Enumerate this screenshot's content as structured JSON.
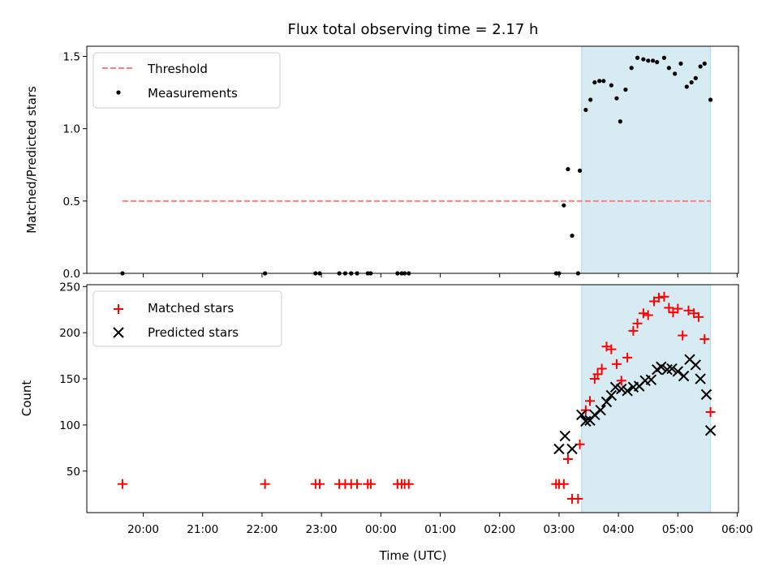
{
  "title": "Flux total observing time = 2.17 h",
  "chart_data": [
    {
      "type": "scatter",
      "ylabel": "Matched/Predicted stars",
      "xlabel": "",
      "x_unit": "hours (UTC, continuing past midnight)",
      "ylim": [
        0,
        1.57
      ],
      "y_ticks": [
        "0.0",
        "0.5",
        "1.0",
        "1.5"
      ],
      "y_tick_values": [
        0,
        0.5,
        1.0,
        1.5
      ],
      "shaded_span": [
        3.38,
        5.55
      ],
      "legend_position": "upper-left",
      "threshold": {
        "name": "Threshold",
        "color": "#ff7f7f",
        "y": 0.5,
        "x_range": [
          19.65,
          29.55
        ]
      },
      "series": [
        {
          "name": "Measurements",
          "color": "#000000",
          "marker": "dot",
          "points": [
            [
              19.65,
              0
            ],
            [
              22.05,
              0
            ],
            [
              22.9,
              0
            ],
            [
              22.97,
              0
            ],
            [
              23.3,
              0
            ],
            [
              23.4,
              0
            ],
            [
              23.5,
              0
            ],
            [
              23.6,
              0
            ],
            [
              23.78,
              0
            ],
            [
              23.83,
              0
            ],
            [
              24.28,
              0
            ],
            [
              24.35,
              0
            ],
            [
              24.4,
              0
            ],
            [
              24.47,
              0
            ],
            [
              26.95,
              0
            ],
            [
              27.0,
              0
            ],
            [
              27.32,
              0
            ],
            [
              27.08,
              0.47
            ],
            [
              27.15,
              0.72
            ],
            [
              27.22,
              0.26
            ],
            [
              27.35,
              0.71
            ],
            [
              27.45,
              1.13
            ],
            [
              27.53,
              1.2
            ],
            [
              27.6,
              1.32
            ],
            [
              27.68,
              1.33
            ],
            [
              27.75,
              1.33
            ],
            [
              27.88,
              1.3
            ],
            [
              27.97,
              1.21
            ],
            [
              28.03,
              1.05
            ],
            [
              28.12,
              1.27
            ],
            [
              28.22,
              1.42
            ],
            [
              28.32,
              1.49
            ],
            [
              28.42,
              1.48
            ],
            [
              28.5,
              1.47
            ],
            [
              28.58,
              1.47
            ],
            [
              28.65,
              1.46
            ],
            [
              28.77,
              1.49
            ],
            [
              28.85,
              1.42
            ],
            [
              28.95,
              1.38
            ],
            [
              29.05,
              1.45
            ],
            [
              29.15,
              1.29
            ],
            [
              29.23,
              1.32
            ],
            [
              29.3,
              1.35
            ],
            [
              29.38,
              1.43
            ],
            [
              29.45,
              1.45
            ],
            [
              29.55,
              1.2
            ]
          ]
        }
      ]
    },
    {
      "type": "scatter",
      "xlabel": "Time (UTC)",
      "ylabel": "Count",
      "x_unit": "hours (UTC, continuing past midnight)",
      "ylim": [
        5,
        252
      ],
      "xlim": [
        19.05,
        30.02
      ],
      "y_ticks": [
        "50",
        "100",
        "150",
        "200",
        "250"
      ],
      "y_tick_values": [
        50,
        100,
        150,
        200,
        250
      ],
      "x_ticks": [
        "20:00",
        "21:00",
        "22:00",
        "23:00",
        "00:00",
        "01:00",
        "02:00",
        "03:00",
        "04:00",
        "05:00",
        "06:00"
      ],
      "x_tick_values": [
        20,
        21,
        22,
        23,
        24,
        25,
        26,
        27,
        28,
        29,
        30
      ],
      "shaded_span": [
        3.38,
        5.55
      ],
      "legend_position": "upper-left",
      "series": [
        {
          "name": "Matched stars",
          "color": "#ff0000",
          "marker": "plus",
          "points": [
            [
              19.65,
              36
            ],
            [
              22.05,
              36
            ],
            [
              22.9,
              36
            ],
            [
              22.97,
              36
            ],
            [
              23.3,
              36
            ],
            [
              23.4,
              36
            ],
            [
              23.5,
              36
            ],
            [
              23.6,
              36
            ],
            [
              23.78,
              36
            ],
            [
              23.83,
              36
            ],
            [
              24.28,
              36
            ],
            [
              24.35,
              36
            ],
            [
              24.4,
              36
            ],
            [
              24.47,
              36
            ],
            [
              26.95,
              36
            ],
            [
              27.0,
              36
            ],
            [
              27.08,
              36
            ],
            [
              27.15,
              63
            ],
            [
              27.22,
              20
            ],
            [
              27.32,
              20
            ],
            [
              27.35,
              79
            ],
            [
              27.45,
              116
            ],
            [
              27.52,
              126
            ],
            [
              27.6,
              150
            ],
            [
              27.65,
              155
            ],
            [
              27.72,
              161
            ],
            [
              27.8,
              185
            ],
            [
              27.88,
              182
            ],
            [
              27.97,
              166
            ],
            [
              28.05,
              148
            ],
            [
              28.15,
              173
            ],
            [
              28.25,
              202
            ],
            [
              28.32,
              210
            ],
            [
              28.42,
              221
            ],
            [
              28.5,
              219
            ],
            [
              28.6,
              234
            ],
            [
              28.68,
              238
            ],
            [
              28.77,
              239
            ],
            [
              28.85,
              227
            ],
            [
              28.92,
              222
            ],
            [
              29.0,
              226
            ],
            [
              29.08,
              197
            ],
            [
              29.18,
              224
            ],
            [
              29.27,
              221
            ],
            [
              29.35,
              217
            ],
            [
              29.45,
              193
            ],
            [
              29.55,
              114
            ]
          ]
        },
        {
          "name": "Predicted stars",
          "color": "#000000",
          "marker": "x",
          "points": [
            [
              27.0,
              74
            ],
            [
              27.1,
              88
            ],
            [
              27.22,
              74
            ],
            [
              27.38,
              111
            ],
            [
              27.45,
              104
            ],
            [
              27.52,
              105
            ],
            [
              27.6,
              111
            ],
            [
              27.7,
              116
            ],
            [
              27.8,
              125
            ],
            [
              27.88,
              132
            ],
            [
              27.95,
              141
            ],
            [
              28.05,
              139
            ],
            [
              28.15,
              137
            ],
            [
              28.25,
              141
            ],
            [
              28.35,
              142
            ],
            [
              28.45,
              148
            ],
            [
              28.55,
              149
            ],
            [
              28.65,
              160
            ],
            [
              28.72,
              163
            ],
            [
              28.82,
              160
            ],
            [
              28.9,
              161
            ],
            [
              29.0,
              158
            ],
            [
              29.1,
              153
            ],
            [
              29.2,
              171
            ],
            [
              29.3,
              165
            ],
            [
              29.38,
              150
            ],
            [
              29.48,
              133
            ],
            [
              29.55,
              94
            ]
          ]
        }
      ]
    }
  ]
}
